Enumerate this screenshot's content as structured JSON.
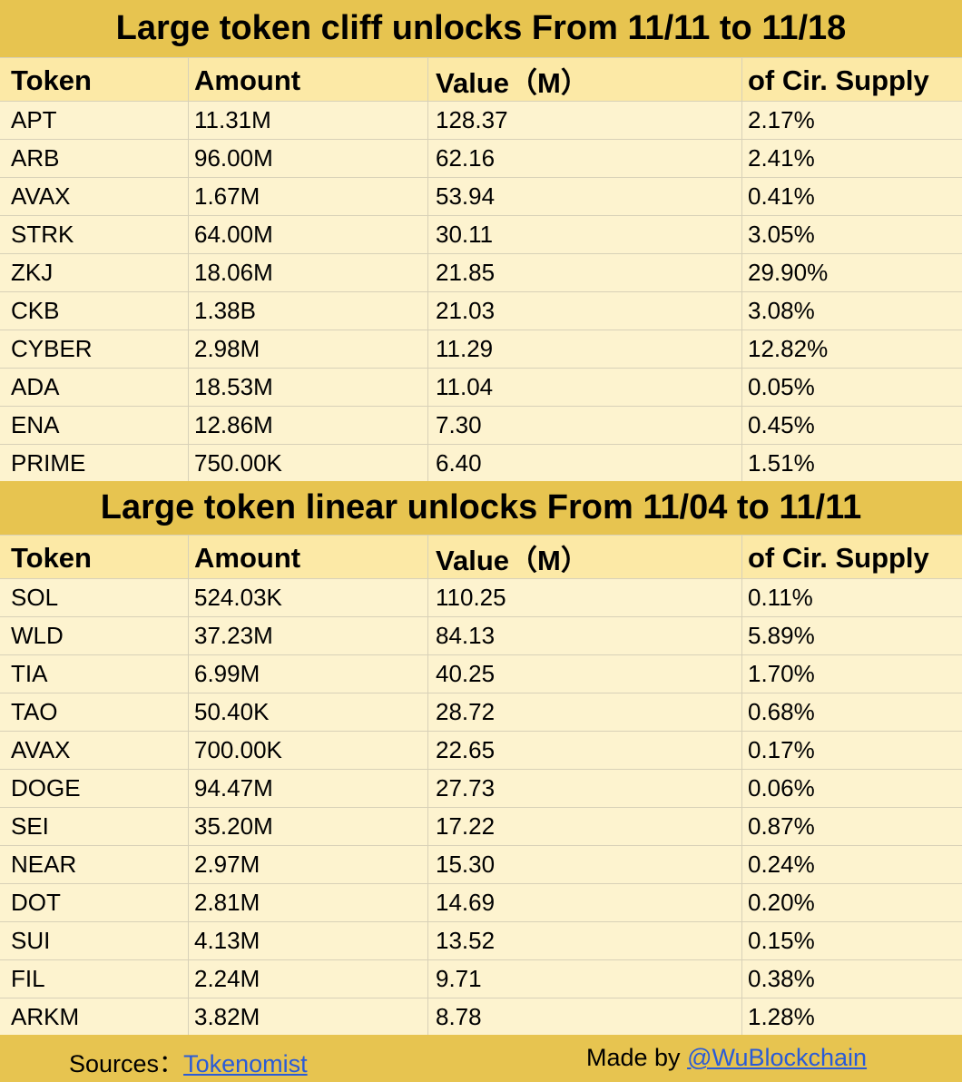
{
  "cliff": {
    "title": "Large token cliff unlocks From 11/11 to 11/18",
    "headers": [
      "Token",
      "Amount",
      "Value（M）",
      "of Cir. Supply"
    ],
    "rows": [
      [
        "APT",
        "11.31M",
        "128.37",
        "2.17%"
      ],
      [
        "ARB",
        "96.00M",
        "62.16",
        "2.41%"
      ],
      [
        "AVAX",
        "1.67M",
        "53.94",
        "0.41%"
      ],
      [
        "STRK",
        "64.00M",
        "30.11",
        "3.05%"
      ],
      [
        "ZKJ",
        "18.06M",
        "21.85",
        "29.90%"
      ],
      [
        "CKB",
        "1.38B",
        "21.03",
        "3.08%"
      ],
      [
        "CYBER",
        "2.98M",
        "11.29",
        "12.82%"
      ],
      [
        "ADA",
        "18.53M",
        "11.04",
        "0.05%"
      ],
      [
        "ENA",
        "12.86M",
        "7.30",
        "0.45%"
      ],
      [
        "PRIME",
        "750.00K",
        "6.40",
        "1.51%"
      ]
    ]
  },
  "linear": {
    "title": "Large token linear unlocks From 11/04 to 11/11",
    "headers": [
      "Token",
      "Amount",
      "Value（M）",
      "of Cir. Supply"
    ],
    "rows": [
      [
        "SOL",
        "524.03K",
        "110.25",
        "0.11%"
      ],
      [
        "WLD",
        "37.23M",
        "84.13",
        "5.89%"
      ],
      [
        "TIA",
        "6.99M",
        "40.25",
        "1.70%"
      ],
      [
        "TAO",
        "50.40K",
        "28.72",
        "0.68%"
      ],
      [
        "AVAX",
        "700.00K",
        "22.65",
        "0.17%"
      ],
      [
        "DOGE",
        "94.47M",
        "27.73",
        "0.06%"
      ],
      [
        "SEI",
        "35.20M",
        "17.22",
        "0.87%"
      ],
      [
        "NEAR",
        "2.97M",
        "15.30",
        "0.24%"
      ],
      [
        "DOT",
        "2.81M",
        "14.69",
        "0.20%"
      ],
      [
        "SUI",
        "4.13M",
        "13.52",
        "0.15%"
      ],
      [
        "FIL",
        "2.24M",
        "9.71",
        "0.38%"
      ],
      [
        "ARKM",
        "3.82M",
        "8.78",
        "1.28%"
      ]
    ]
  },
  "footer": {
    "sources_label": "Sources：",
    "sources_link": "Tokenomist",
    "made_label": "Made by ",
    "made_link": "@WuBlockchain"
  },
  "colors": {
    "title_bg": "#e7c450",
    "header_bg": "#fce9a6",
    "cell_bg": "#fdf3cf",
    "link": "#2a5bd7"
  }
}
